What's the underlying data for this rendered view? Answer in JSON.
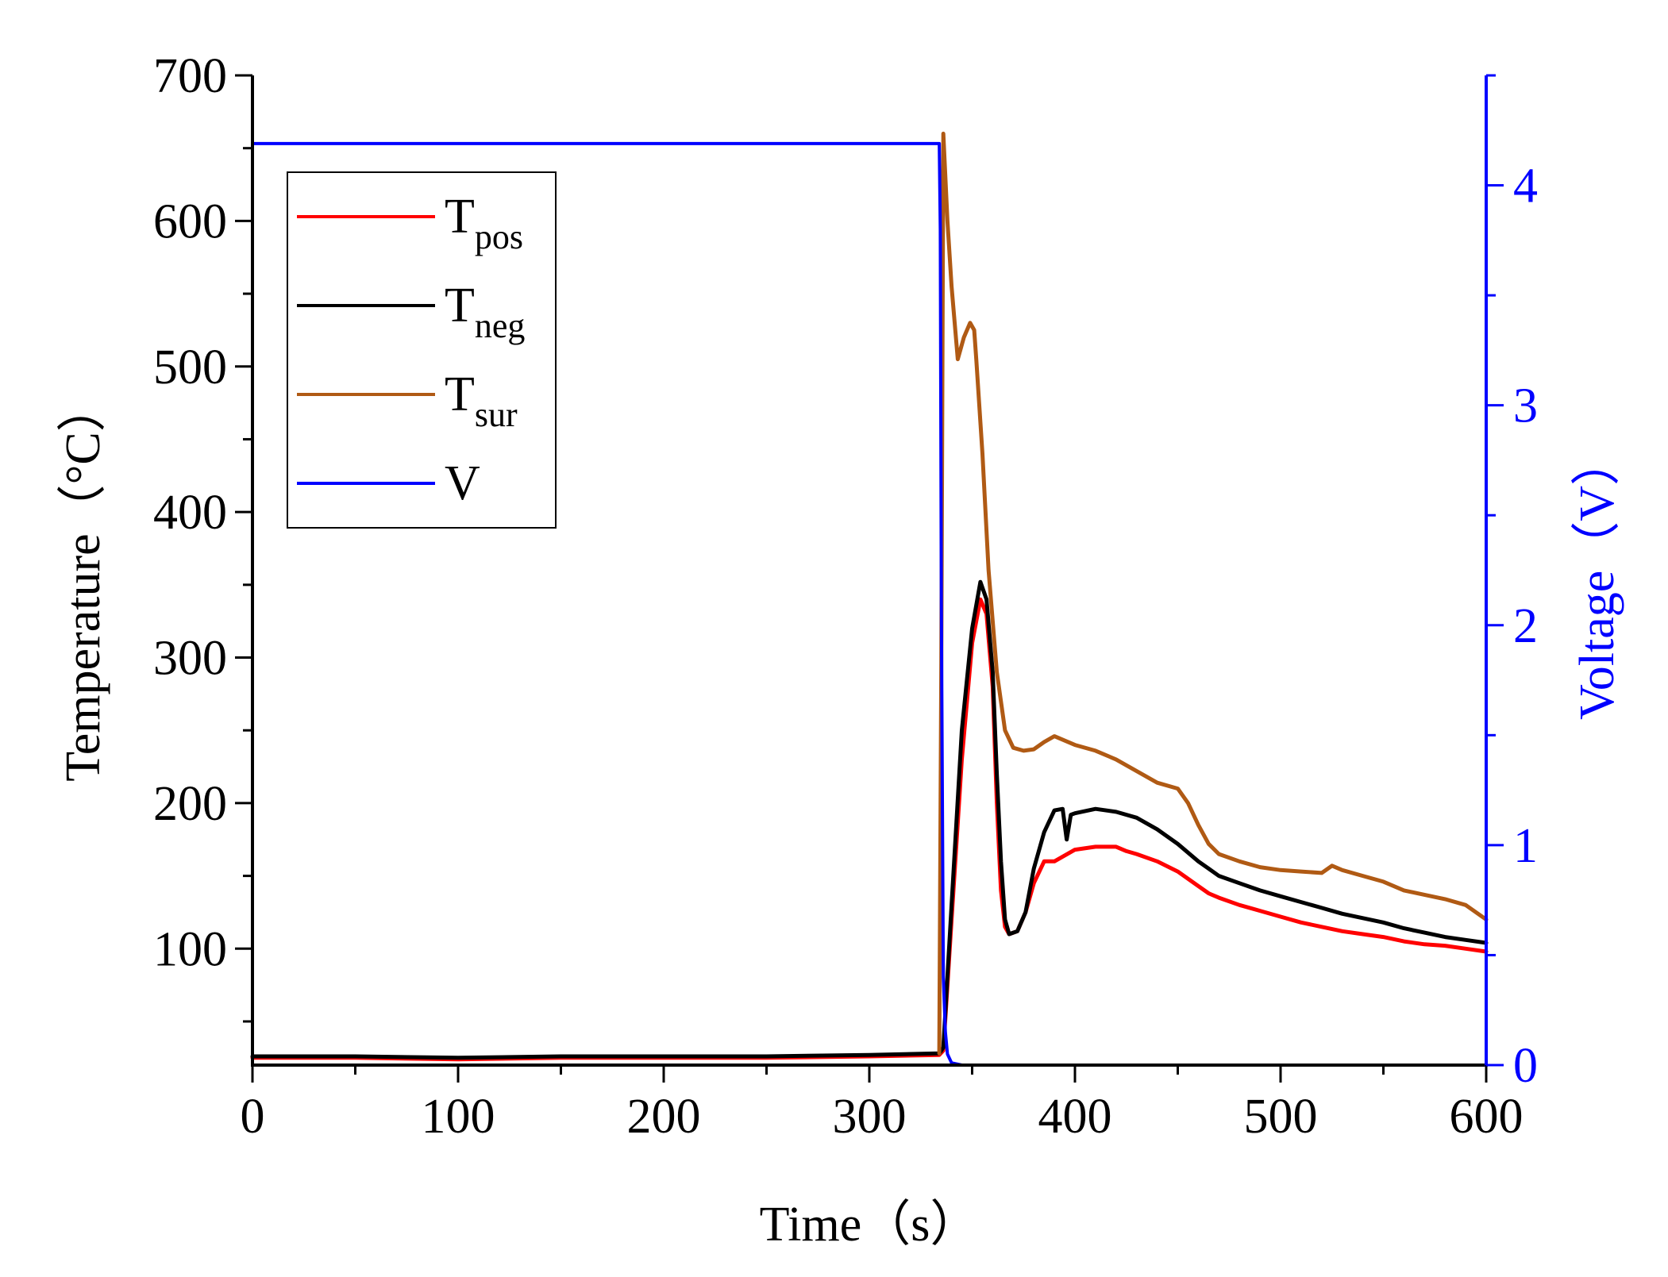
{
  "chart_data": {
    "type": "line",
    "title": "",
    "xlabel": "Time（s）",
    "ylabel_left": "Temperature（°C）",
    "ylabel_right": "Voltage（V）",
    "xlim": [
      0,
      600
    ],
    "ylim_left": [
      20,
      700
    ],
    "ylim_right": [
      0,
      4.5
    ],
    "x_ticks": [
      0,
      100,
      200,
      300,
      400,
      500,
      600
    ],
    "y_left_ticks": [
      100,
      200,
      300,
      400,
      500,
      600,
      700
    ],
    "y_right_ticks": [
      0,
      1,
      2,
      3,
      4
    ],
    "grid": false,
    "legend_position": "top-left",
    "legend": [
      {
        "main": "T",
        "sub": "pos",
        "key": "T_pos",
        "color": "#ff0000"
      },
      {
        "main": "T",
        "sub": "neg",
        "key": "T_neg",
        "color": "#000000"
      },
      {
        "main": "T",
        "sub": "sur",
        "key": "T_sur",
        "color": "#b05a14"
      },
      {
        "main": "V",
        "sub": "",
        "key": "V",
        "color": "#0000ff"
      }
    ],
    "series": [
      {
        "name": "T_pos",
        "axis": "left",
        "color": "#ff0000",
        "x": [
          0,
          50,
          100,
          150,
          200,
          250,
          300,
          334,
          336,
          340,
          345,
          350,
          354,
          357,
          360,
          362,
          364,
          366,
          368,
          372,
          376,
          380,
          385,
          390,
          400,
          410,
          420,
          425,
          430,
          440,
          450,
          460,
          465,
          470,
          480,
          490,
          500,
          510,
          520,
          530,
          540,
          550,
          560,
          570,
          580,
          590,
          600
        ],
        "y": [
          25,
          25,
          24,
          25,
          25,
          25,
          26,
          27,
          30,
          120,
          230,
          310,
          340,
          330,
          280,
          200,
          140,
          115,
          110,
          112,
          125,
          145,
          160,
          160,
          168,
          170,
          170,
          167,
          165,
          160,
          153,
          143,
          138,
          135,
          130,
          126,
          122,
          118,
          115,
          112,
          110,
          108,
          105,
          103,
          102,
          100,
          98
        ]
      },
      {
        "name": "T_neg",
        "axis": "left",
        "color": "#000000",
        "x": [
          0,
          50,
          100,
          150,
          200,
          250,
          300,
          334,
          336,
          340,
          345,
          350,
          354,
          357,
          360,
          362,
          364,
          366,
          368,
          372,
          376,
          380,
          385,
          390,
          394,
          396,
          398,
          400,
          410,
          420,
          430,
          440,
          450,
          460,
          465,
          470,
          480,
          490,
          500,
          510,
          520,
          530,
          540,
          550,
          560,
          570,
          580,
          590,
          600
        ],
        "y": [
          26,
          26,
          25,
          26,
          26,
          26,
          27,
          28,
          32,
          130,
          250,
          320,
          352,
          340,
          290,
          220,
          160,
          120,
          110,
          112,
          125,
          155,
          180,
          195,
          196,
          175,
          192,
          193,
          196,
          194,
          190,
          182,
          172,
          160,
          155,
          150,
          145,
          140,
          136,
          132,
          128,
          124,
          121,
          118,
          114,
          111,
          108,
          106,
          104
        ]
      },
      {
        "name": "T_sur",
        "axis": "left",
        "color": "#b05a14",
        "x": [
          334,
          335,
          336,
          338,
          340,
          343,
          346,
          349,
          351,
          352,
          355,
          358,
          362,
          366,
          370,
          375,
          380,
          385,
          390,
          395,
          400,
          410,
          420,
          430,
          440,
          450,
          455,
          460,
          465,
          470,
          480,
          490,
          500,
          510,
          520,
          525,
          530,
          540,
          550,
          560,
          570,
          580,
          590,
          600
        ],
        "y": [
          28,
          300,
          660,
          600,
          555,
          505,
          520,
          530,
          525,
          505,
          440,
          360,
          290,
          250,
          238,
          236,
          237,
          242,
          246,
          243,
          240,
          236,
          230,
          222,
          214,
          210,
          200,
          185,
          172,
          165,
          160,
          156,
          154,
          153,
          152,
          157,
          154,
          150,
          146,
          140,
          137,
          134,
          130,
          120
        ]
      },
      {
        "name": "V",
        "axis": "right",
        "color": "#0000ff",
        "x": [
          0,
          100,
          200,
          300,
          334,
          334.5,
          335,
          336,
          337,
          338,
          340,
          345,
          400,
          500,
          600
        ],
        "y": [
          4.19,
          4.19,
          4.19,
          4.19,
          4.19,
          3.8,
          2.1,
          0.4,
          0.15,
          0.05,
          0.01,
          0.0,
          0.0,
          0.0,
          0.0
        ]
      }
    ]
  }
}
